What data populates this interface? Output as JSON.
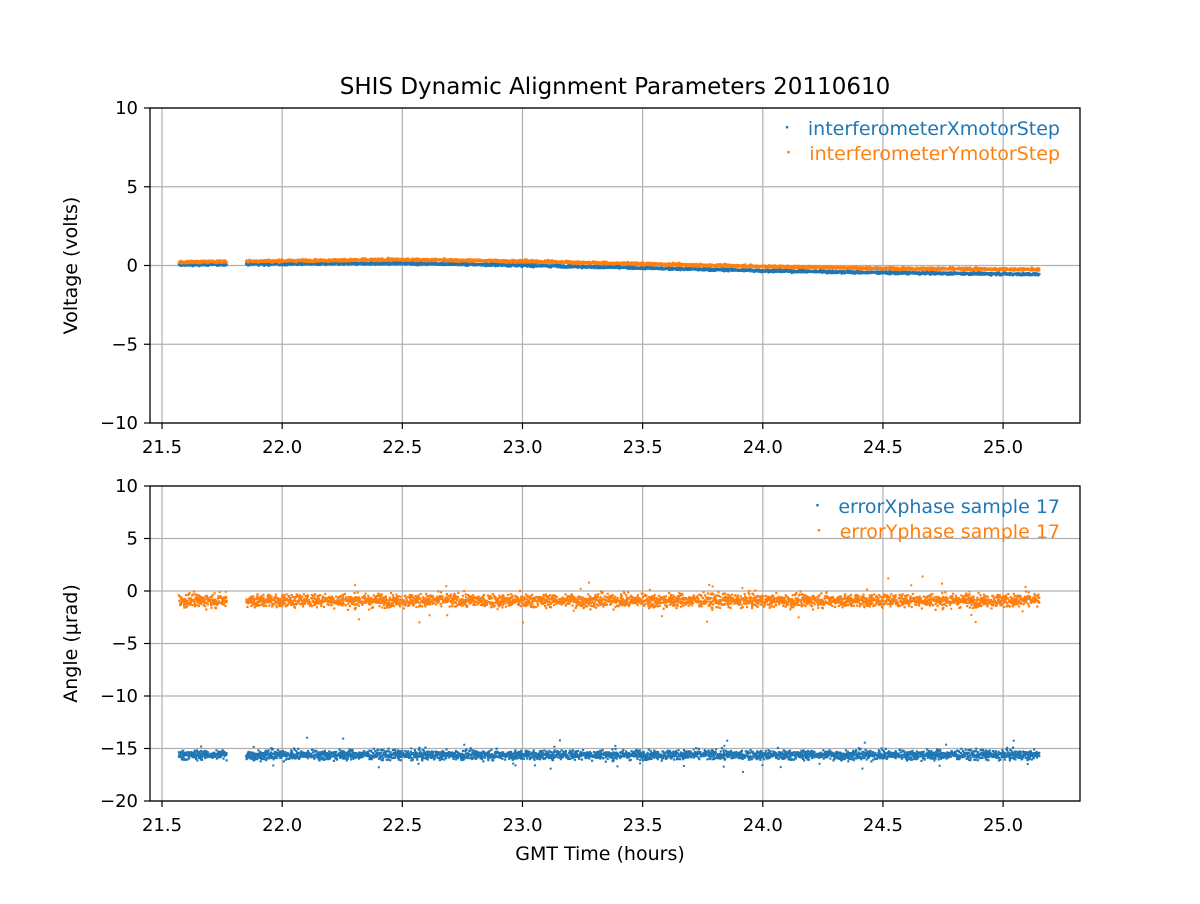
{
  "title": "SHIS Dynamic Alignment Parameters 20110610",
  "colors": {
    "series1": "#1f77b4",
    "series2": "#ff7f0e",
    "grid": "#b0b0b0"
  },
  "chart_data": [
    {
      "type": "scatter",
      "title": "SHIS Dynamic Alignment Parameters 20110610",
      "xlabel": "",
      "ylabel": "Voltage (volts)",
      "xlim": [
        21.45,
        25.32
      ],
      "ylim": [
        -10,
        10
      ],
      "xticks": [
        21.5,
        22.0,
        22.5,
        23.0,
        23.5,
        24.0,
        24.5,
        25.0
      ],
      "xtick_labels": [
        "21.5",
        "22.0",
        "22.5",
        "23.0",
        "23.5",
        "24.0",
        "24.5",
        "25.0"
      ],
      "yticks": [
        -10,
        -5,
        0,
        5,
        10
      ],
      "ytick_labels": [
        "−10",
        "−5",
        "0",
        "5",
        "10"
      ],
      "grid": true,
      "legend_position": "top-right",
      "gap": [
        21.77,
        21.85
      ],
      "series": [
        {
          "name": "interferometerXmotorStep",
          "color": "#1f77b4",
          "x": [
            21.57,
            22.0,
            22.5,
            23.0,
            23.5,
            24.0,
            24.5,
            25.15
          ],
          "y": [
            0.05,
            0.12,
            0.15,
            0.02,
            -0.15,
            -0.32,
            -0.45,
            -0.55
          ],
          "spread": 0.15
        },
        {
          "name": "interferometerYmotorStep",
          "color": "#ff7f0e",
          "x": [
            21.57,
            22.0,
            22.5,
            23.0,
            23.5,
            24.0,
            24.5,
            25.15
          ],
          "y": [
            0.22,
            0.3,
            0.38,
            0.28,
            0.1,
            -0.05,
            -0.18,
            -0.25
          ],
          "spread": 0.15
        }
      ]
    },
    {
      "type": "scatter",
      "xlabel": "GMT Time (hours)",
      "ylabel": "Angle (μrad)",
      "xlim": [
        21.45,
        25.32
      ],
      "ylim": [
        -20,
        10
      ],
      "xticks": [
        21.5,
        22.0,
        22.5,
        23.0,
        23.5,
        24.0,
        24.5,
        25.0
      ],
      "xtick_labels": [
        "21.5",
        "22.0",
        "22.5",
        "23.0",
        "23.5",
        "24.0",
        "24.5",
        "25.0"
      ],
      "yticks": [
        -20,
        -15,
        -10,
        -5,
        0,
        5,
        10
      ],
      "ytick_labels": [
        "−20",
        "−15",
        "−10",
        "−5",
        "0",
        "5",
        "10"
      ],
      "grid": true,
      "legend_position": "top-right",
      "gap": [
        21.77,
        21.85
      ],
      "series": [
        {
          "name": "errorXphase sample 17",
          "color": "#1f77b4",
          "x": [
            21.57,
            25.15
          ],
          "y": [
            -15.6,
            -15.6
          ],
          "spread": 0.8
        },
        {
          "name": "errorYphase sample 17",
          "color": "#ff7f0e",
          "x": [
            21.57,
            25.15
          ],
          "y": [
            -0.9,
            -0.9
          ],
          "spread": 1.1
        }
      ]
    }
  ]
}
